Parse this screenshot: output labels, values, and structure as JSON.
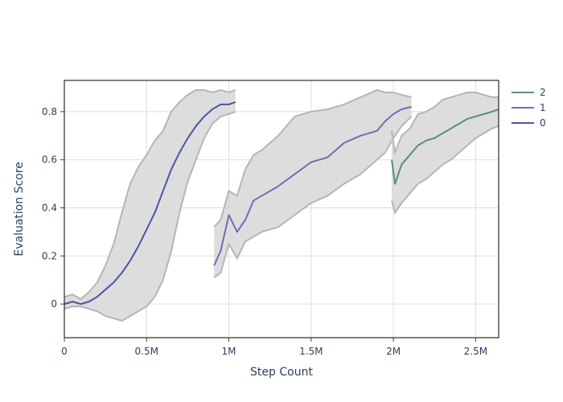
{
  "chart_data": {
    "type": "line",
    "xlabel": "Step Count",
    "ylabel": "Evaluation Score",
    "xlim": [
      0,
      2640000
    ],
    "ylim": [
      -0.14,
      0.93
    ],
    "x_ticks": [
      {
        "value": 0,
        "label": "0"
      },
      {
        "value": 500000,
        "label": "0.5M"
      },
      {
        "value": 1000000,
        "label": "1M"
      },
      {
        "value": 1500000,
        "label": "1.5M"
      },
      {
        "value": 2000000,
        "label": "2M"
      },
      {
        "value": 2500000,
        "label": "2.5M"
      }
    ],
    "y_ticks": [
      {
        "value": 0,
        "label": "0"
      },
      {
        "value": 0.2,
        "label": "0.2"
      },
      {
        "value": 0.4,
        "label": "0.4"
      },
      {
        "value": 0.6,
        "label": "0.6"
      },
      {
        "value": 0.8,
        "label": "0.8"
      }
    ],
    "grid": true,
    "legend_position": "top-right",
    "band_color": "#d9d9d9",
    "band_edge_color": "#b5b5b5",
    "series": [
      {
        "name": "0",
        "color": "#4a55a8",
        "x": [
          0,
          50000,
          100000,
          150000,
          200000,
          250000,
          300000,
          350000,
          400000,
          450000,
          500000,
          550000,
          600000,
          650000,
          700000,
          750000,
          800000,
          850000,
          900000,
          950000,
          1000000,
          1040000
        ],
        "y": [
          0.0,
          0.01,
          0.0,
          0.01,
          0.03,
          0.06,
          0.09,
          0.13,
          0.18,
          0.24,
          0.31,
          0.38,
          0.47,
          0.56,
          0.63,
          0.69,
          0.74,
          0.78,
          0.81,
          0.83,
          0.83,
          0.84
        ],
        "upper": [
          0.03,
          0.04,
          0.02,
          0.05,
          0.09,
          0.16,
          0.25,
          0.38,
          0.5,
          0.57,
          0.62,
          0.68,
          0.72,
          0.8,
          0.84,
          0.87,
          0.89,
          0.89,
          0.88,
          0.89,
          0.88,
          0.89
        ],
        "lower": [
          -0.02,
          -0.01,
          -0.01,
          -0.02,
          -0.03,
          -0.05,
          -0.06,
          -0.07,
          -0.05,
          -0.03,
          -0.01,
          0.03,
          0.1,
          0.22,
          0.38,
          0.51,
          0.6,
          0.69,
          0.75,
          0.78,
          0.79,
          0.8
        ]
      },
      {
        "name": "1",
        "color": "#6f6fb0",
        "x": [
          910000,
          950000,
          1000000,
          1050000,
          1100000,
          1150000,
          1200000,
          1300000,
          1400000,
          1500000,
          1600000,
          1700000,
          1800000,
          1900000,
          1950000,
          2000000,
          2050000,
          2110000
        ],
        "y": [
          0.16,
          0.22,
          0.37,
          0.3,
          0.35,
          0.43,
          0.45,
          0.49,
          0.54,
          0.59,
          0.61,
          0.67,
          0.7,
          0.72,
          0.76,
          0.79,
          0.81,
          0.82
        ],
        "upper": [
          0.32,
          0.35,
          0.47,
          0.45,
          0.56,
          0.62,
          0.64,
          0.7,
          0.78,
          0.8,
          0.81,
          0.83,
          0.86,
          0.89,
          0.88,
          0.88,
          0.87,
          0.86
        ],
        "lower": [
          0.11,
          0.13,
          0.25,
          0.19,
          0.26,
          0.28,
          0.3,
          0.32,
          0.37,
          0.42,
          0.45,
          0.5,
          0.54,
          0.6,
          0.63,
          0.69,
          0.74,
          0.78
        ]
      },
      {
        "name": "2",
        "color": "#5a8a8a",
        "x": [
          1990000,
          2010000,
          2050000,
          2100000,
          2150000,
          2200000,
          2250000,
          2300000,
          2350000,
          2400000,
          2450000,
          2500000,
          2550000,
          2600000,
          2640000
        ],
        "y": [
          0.6,
          0.5,
          0.58,
          0.62,
          0.66,
          0.68,
          0.69,
          0.71,
          0.73,
          0.75,
          0.77,
          0.78,
          0.79,
          0.8,
          0.81
        ],
        "upper": [
          0.72,
          0.63,
          0.7,
          0.73,
          0.79,
          0.8,
          0.82,
          0.85,
          0.86,
          0.87,
          0.88,
          0.88,
          0.87,
          0.86,
          0.86
        ],
        "lower": [
          0.43,
          0.38,
          0.42,
          0.46,
          0.5,
          0.52,
          0.55,
          0.58,
          0.6,
          0.63,
          0.66,
          0.69,
          0.71,
          0.73,
          0.74
        ]
      }
    ],
    "legend_order": [
      "2",
      "1",
      "0"
    ]
  }
}
